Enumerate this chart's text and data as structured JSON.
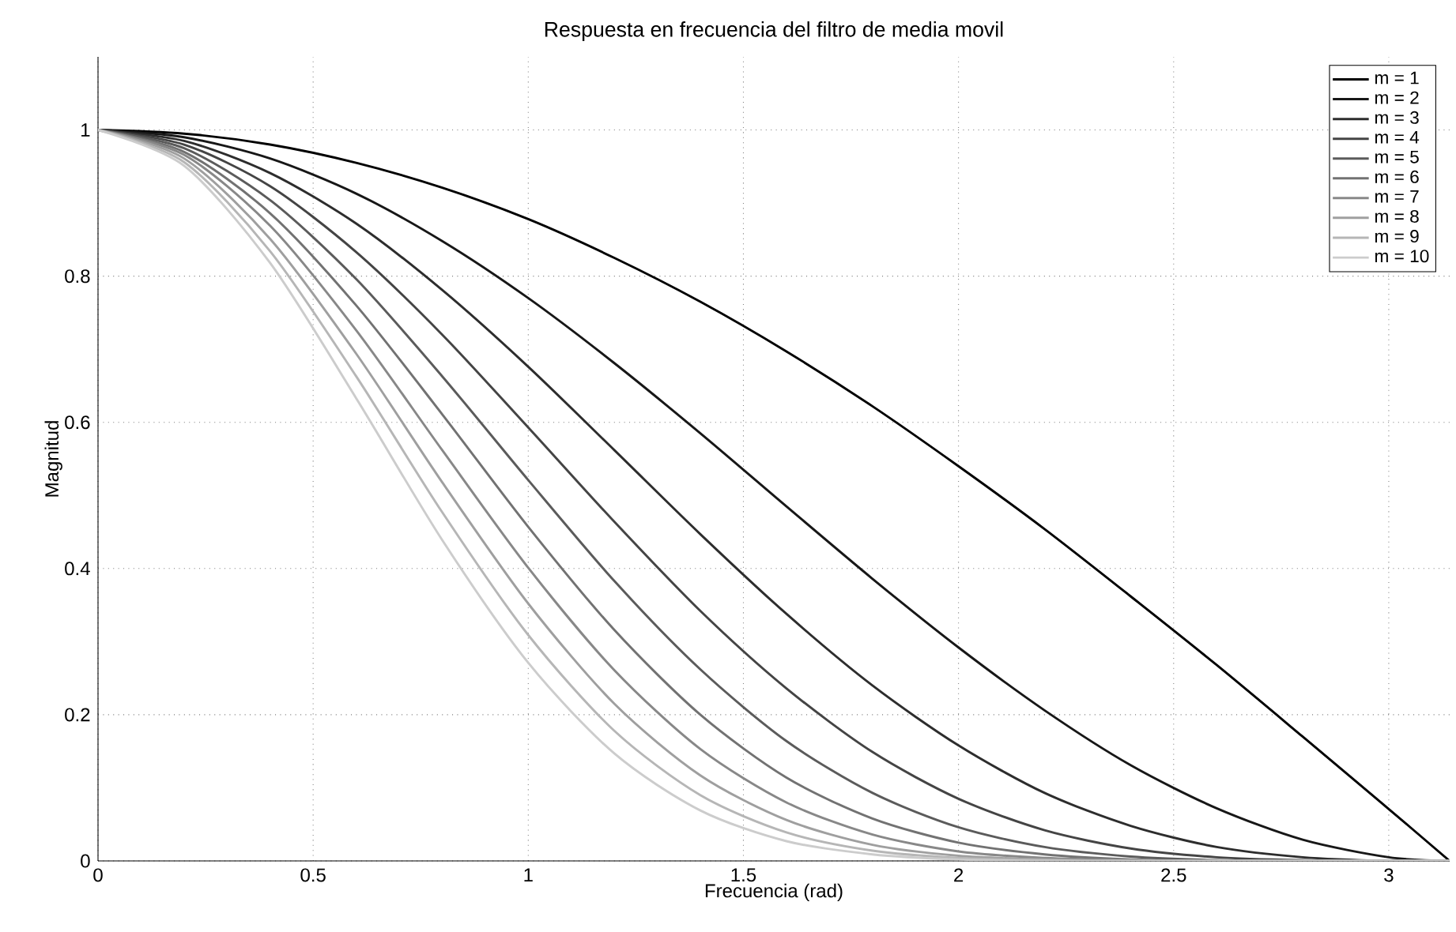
{
  "chart_data": {
    "type": "line",
    "title": "Respuesta en frecuencia del filtro de media movil",
    "xlabel": "Frecuencia (rad)",
    "ylabel": "Magnitud",
    "x": [
      0,
      0.2,
      0.4,
      0.6,
      0.8,
      1.0,
      1.2,
      1.4,
      1.6,
      1.8,
      2.0,
      2.2,
      2.4,
      2.6,
      2.8,
      3.0,
      3.1416
    ],
    "series": [
      {
        "name": "m = 1",
        "color": "#000000",
        "values": [
          1,
          0.995,
          0.98,
          0.955,
          0.921,
          0.878,
          0.825,
          0.765,
          0.697,
          0.622,
          0.54,
          0.454,
          0.362,
          0.268,
          0.17,
          0.071,
          0
        ]
      },
      {
        "name": "m = 2",
        "color": "#171717",
        "values": [
          1,
          0.99,
          0.961,
          0.913,
          0.848,
          0.77,
          0.681,
          0.585,
          0.485,
          0.386,
          0.292,
          0.206,
          0.131,
          0.072,
          0.029,
          0.005,
          0
        ]
      },
      {
        "name": "m = 3",
        "color": "#2d2d2d",
        "values": [
          1,
          0.985,
          0.941,
          0.872,
          0.781,
          0.676,
          0.562,
          0.447,
          0.338,
          0.24,
          0.158,
          0.093,
          0.048,
          0.019,
          0.005,
          0,
          0
        ]
      },
      {
        "name": "m = 4",
        "color": "#444444",
        "values": [
          1,
          0.98,
          0.923,
          0.833,
          0.72,
          0.593,
          0.464,
          0.342,
          0.236,
          0.149,
          0.085,
          0.042,
          0.017,
          0.005,
          0.001,
          0,
          0
        ]
      },
      {
        "name": "m = 5",
        "color": "#5b5b5b",
        "values": [
          1,
          0.975,
          0.904,
          0.796,
          0.663,
          0.521,
          0.383,
          0.262,
          0.164,
          0.093,
          0.046,
          0.019,
          0.006,
          0.001,
          0,
          0,
          0
        ]
      },
      {
        "name": "m = 6",
        "color": "#727272",
        "values": [
          1,
          0.97,
          0.886,
          0.76,
          0.611,
          0.457,
          0.316,
          0.2,
          0.114,
          0.058,
          0.025,
          0.009,
          0.002,
          0,
          0,
          0,
          0
        ]
      },
      {
        "name": "m = 7",
        "color": "#888888",
        "values": [
          1,
          0.966,
          0.869,
          0.726,
          0.562,
          0.401,
          0.261,
          0.153,
          0.08,
          0.036,
          0.013,
          0.004,
          0.001,
          0,
          0,
          0,
          0
        ]
      },
      {
        "name": "m = 8",
        "color": "#9f9f9f",
        "values": [
          1,
          0.961,
          0.851,
          0.694,
          0.518,
          0.352,
          0.215,
          0.117,
          0.056,
          0.022,
          0.007,
          0.002,
          0,
          0,
          0,
          0,
          0
        ]
      },
      {
        "name": "m = 9",
        "color": "#b6b6b6",
        "values": [
          1,
          0.956,
          0.834,
          0.663,
          0.477,
          0.309,
          0.178,
          0.09,
          0.039,
          0.014,
          0.004,
          0.001,
          0,
          0,
          0,
          0,
          0
        ]
      },
      {
        "name": "m = 10",
        "color": "#cccccc",
        "values": [
          1,
          0.951,
          0.818,
          0.633,
          0.439,
          0.271,
          0.147,
          0.069,
          0.027,
          0.009,
          0.002,
          0,
          0,
          0,
          0,
          0,
          0
        ]
      }
    ],
    "xlim": [
      0,
      3.1416
    ],
    "ylim": [
      0,
      1.1
    ],
    "xticks": [
      0,
      0.5,
      1,
      1.5,
      2,
      2.5,
      3
    ],
    "yticks": [
      0,
      0.2,
      0.4,
      0.6,
      0.8,
      1
    ],
    "grid": true,
    "legend": "top right"
  }
}
